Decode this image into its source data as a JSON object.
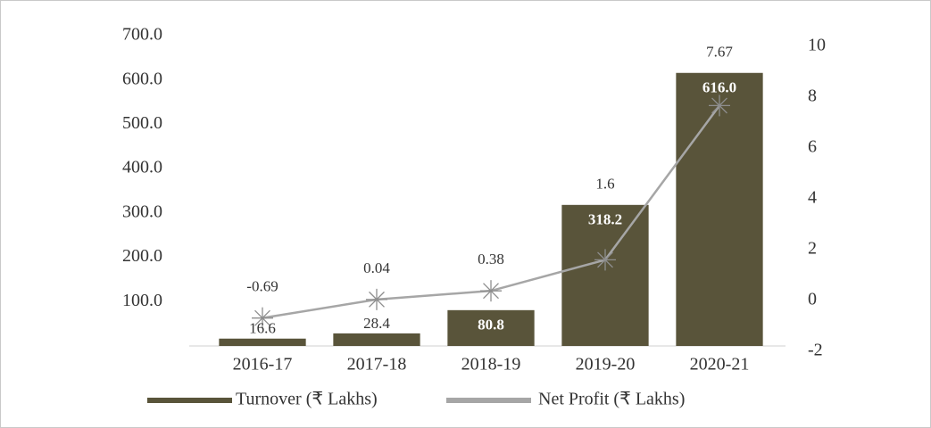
{
  "chart_data": {
    "type": "bar_line",
    "categories": [
      "2016-17",
      "2017-18",
      "2018-19",
      "2019-20",
      "2020-21"
    ],
    "series": [
      {
        "name": "Turnover (₹ Lakhs)",
        "color": "#59543a",
        "values": [
          16.6,
          28.4,
          80.8,
          318.2,
          616.0
        ],
        "value_labels": [
          "16.6",
          "28.4",
          "80.8",
          "318.2",
          "616.0"
        ]
      },
      {
        "name": "Net Profit (₹ Lakhs)",
        "color": "#a6a6a6",
        "axis": "y2",
        "values": [
          -0.69,
          0.04,
          0.38,
          1.6,
          7.67
        ]
      }
    ],
    "ylim": [
      0,
      700
    ],
    "yticks": [
      {
        "value": 100,
        "label": "100.0"
      },
      {
        "value": 200,
        "label": "200.0"
      },
      {
        "value": 300,
        "label": "300.0"
      },
      {
        "value": 400,
        "label": "400.0"
      },
      {
        "value": 500,
        "label": "500.0"
      },
      {
        "value": 600,
        "label": "600.0"
      },
      {
        "value": 700,
        "label": "700.0"
      }
    ],
    "y2lim": [
      -2,
      10
    ],
    "y2ticks": [
      -2,
      0,
      2,
      4,
      6,
      8,
      10
    ],
    "legend": "bottom"
  }
}
